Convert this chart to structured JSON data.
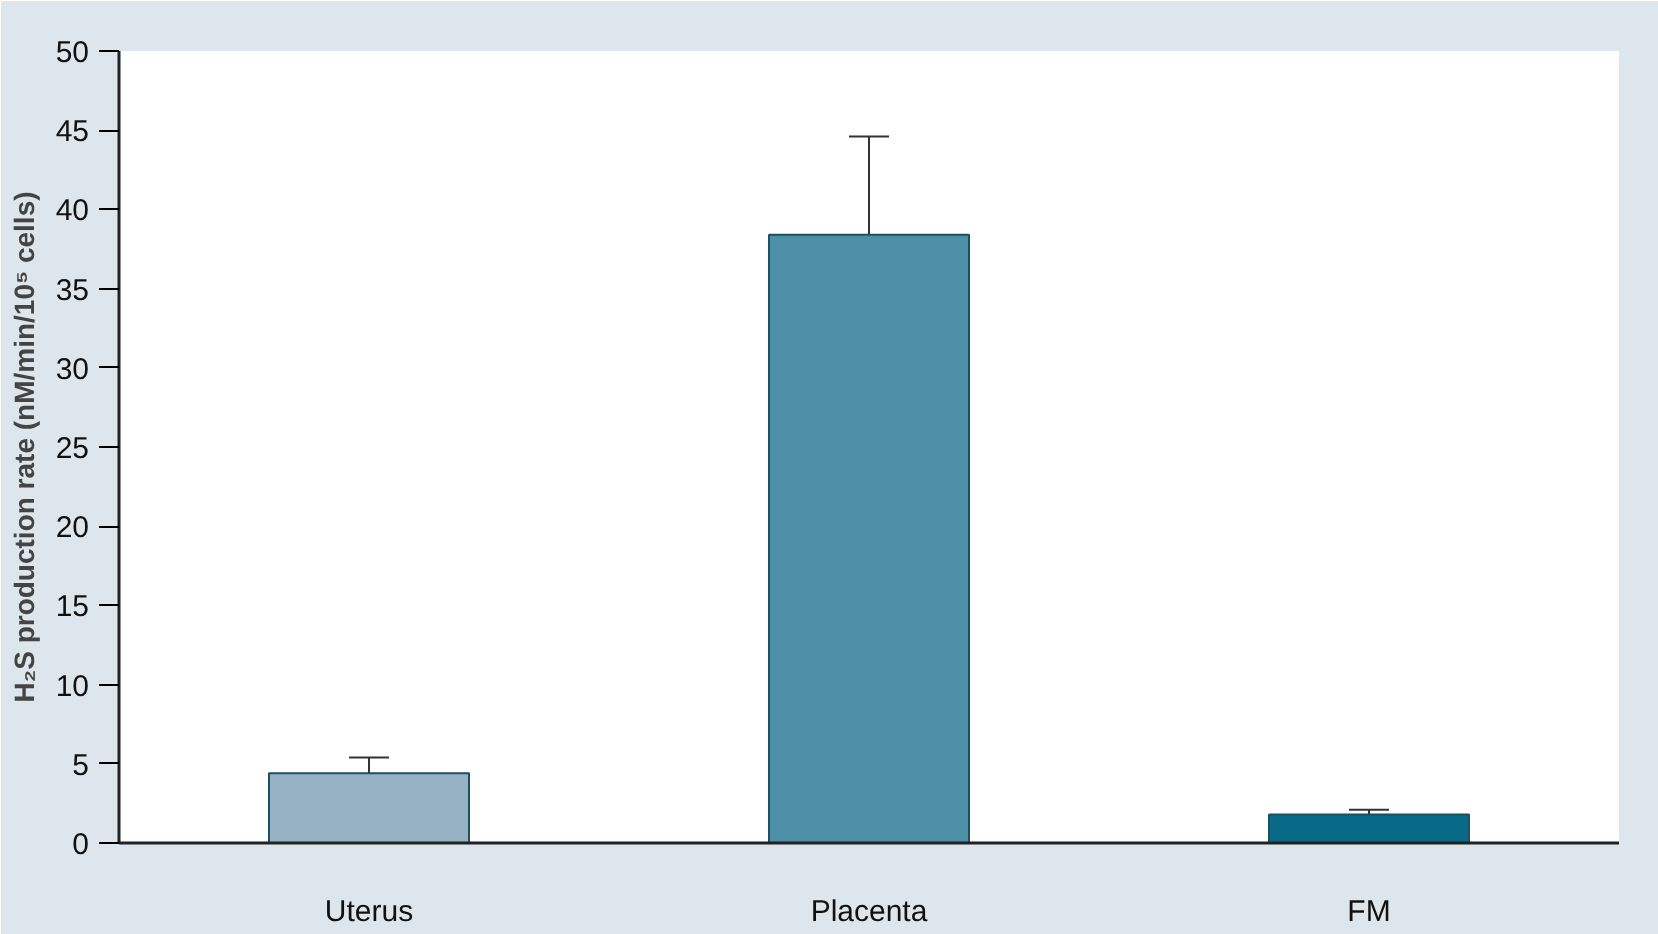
{
  "chart_data": {
    "type": "bar",
    "ylabel": "H₂S production rate (nM/min/10⁵ cells)",
    "categories": [
      "Uterus",
      "Placenta",
      "FM"
    ],
    "values": [
      4.4,
      38.4,
      1.8
    ],
    "colors": [
      "#97b3c3",
      "#4d8fa6",
      "#086a86"
    ],
    "errors": [
      [
        4.4,
        5.4
      ],
      [
        38.4,
        44.6
      ],
      [
        1.8,
        2.1
      ]
    ],
    "ylim": [
      0,
      50
    ],
    "yticks": [
      0,
      5,
      10,
      15,
      20,
      25,
      30,
      35,
      40,
      45,
      50
    ],
    "grid": false
  }
}
